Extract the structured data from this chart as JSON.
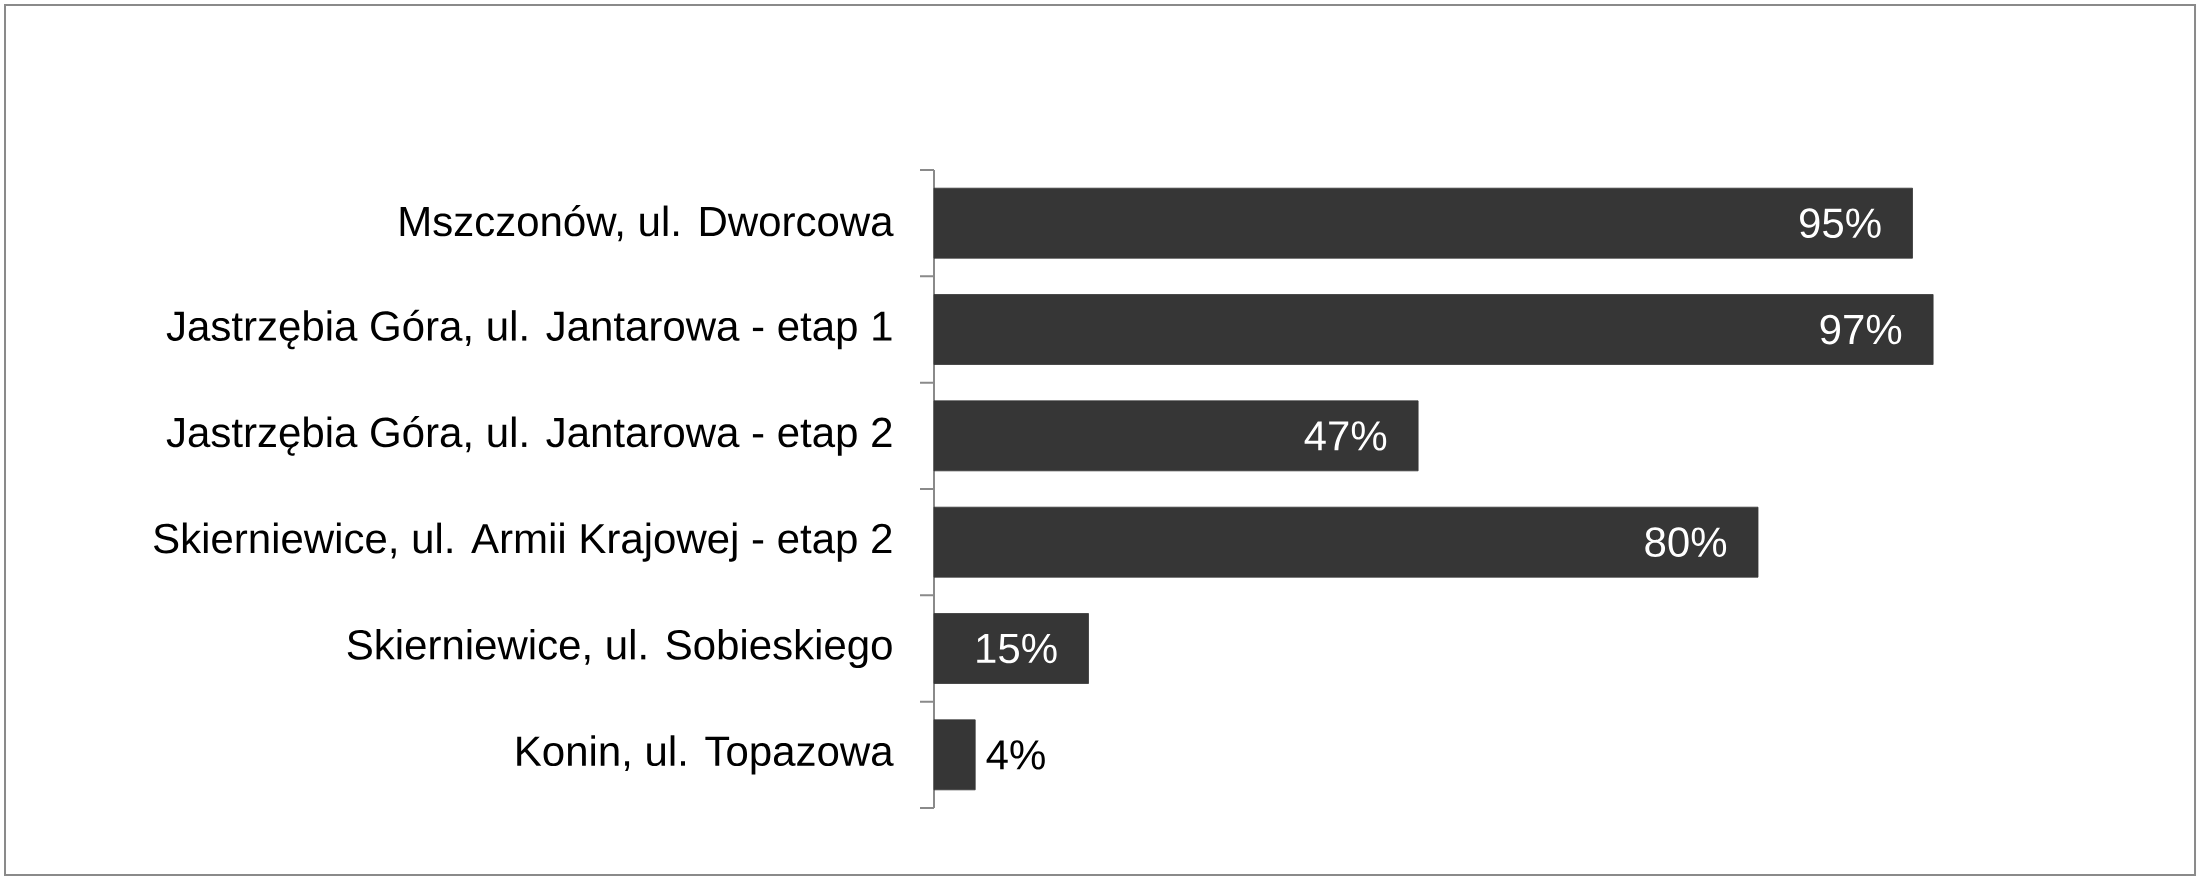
{
  "chart_data": {
    "type": "bar",
    "orientation": "horizontal",
    "categories": [
      "Mszczonów, ul. Dworcowa",
      "Jastrzębia Góra, ul. Jantarowa - etap 1",
      "Jastrzębia Góra, ul. Jantarowa - etap 2",
      "Skierniewice, ul. Armii Krajowej - etap 2",
      "Skierniewice, ul. Sobieskiego",
      "Konin, ul. Topazowa"
    ],
    "values": [
      95,
      97,
      47,
      80,
      15,
      4
    ],
    "color": "#363636",
    "value_labels": [
      "95%",
      "97%",
      "47%",
      "80%",
      "15%",
      "4%"
    ]
  }
}
